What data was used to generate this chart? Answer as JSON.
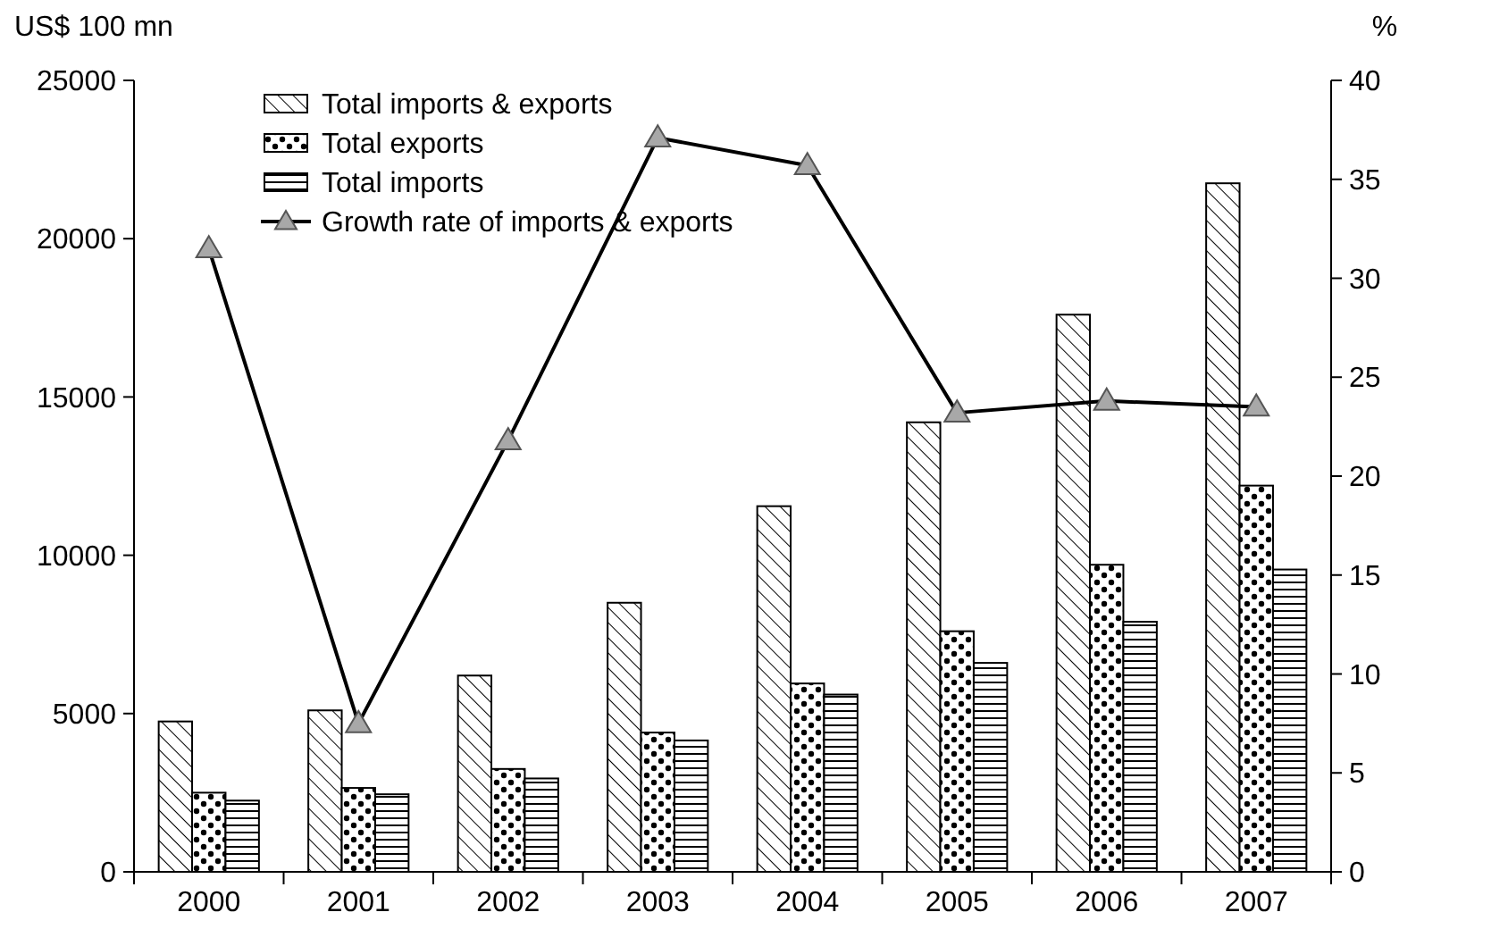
{
  "chart_data": {
    "type": "bar",
    "ylabel": "US$ 100 mn",
    "y2label": "%",
    "categories": [
      "2000",
      "2001",
      "2002",
      "2003",
      "2004",
      "2005",
      "2006",
      "2007"
    ],
    "series": [
      {
        "name": "Total imports & exports",
        "color": "#000000",
        "values": [
          4750,
          5100,
          6200,
          8500,
          11550,
          14200,
          17600,
          21750
        ]
      },
      {
        "name": "Total exports",
        "color": "#000000",
        "values": [
          2500,
          2650,
          3250,
          4400,
          5950,
          7600,
          9700,
          12200
        ]
      },
      {
        "name": "Total imports",
        "color": "#000000",
        "values": [
          2250,
          2450,
          2950,
          4150,
          5600,
          6600,
          7900,
          9550
        ]
      },
      {
        "name": "Growth rate of imports & exports",
        "type": "line",
        "axis": "y2",
        "color": "#000000",
        "marker": "triangle",
        "values": [
          31.5,
          7.5,
          21.8,
          37.1,
          35.7,
          23.2,
          23.8,
          23.5
        ]
      }
    ],
    "ylim": [
      0,
      25000
    ],
    "yticks": [
      0,
      5000,
      10000,
      15000,
      20000,
      25000
    ],
    "y2lim": [
      0,
      40
    ],
    "y2ticks": [
      0,
      5,
      10,
      15,
      20,
      25,
      30,
      35,
      40
    ],
    "grid": false,
    "legend": "top left"
  }
}
